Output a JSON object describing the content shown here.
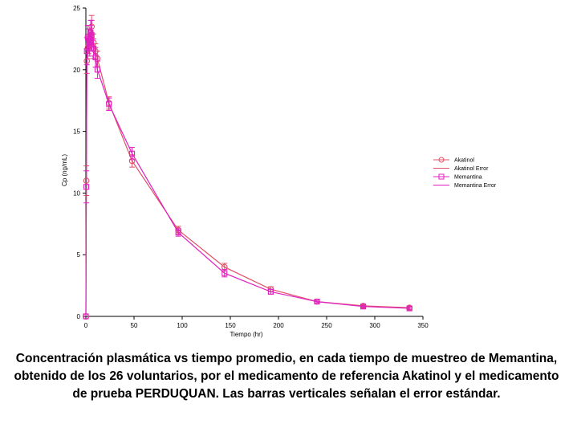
{
  "caption": "Concentración plasmática vs tiempo promedio, en cada tiempo de muestreo de Memantina, obtenido de los 26 voluntarios, por el medicamento de referencia Akatinol y el medicamento de prueba PERDUQUAN. Las barras verticales señalan el error estándar.",
  "chart_data": {
    "type": "line",
    "xlabel": "Tiempo (hr)",
    "ylabel": "Cp (ng/mL)",
    "xlim": [
      0,
      350
    ],
    "ylim": [
      0,
      25
    ],
    "xticks": [
      0,
      50,
      100,
      150,
      200,
      250,
      300,
      350
    ],
    "yticks": [
      0,
      5,
      10,
      15,
      20,
      25
    ],
    "grid": false,
    "legend_position": "right",
    "legend": [
      "Akatinol",
      "Akatinol Error",
      "Memantina",
      "Memantina Error"
    ],
    "series": [
      {
        "name": "Akatinol",
        "color": "#e0506a",
        "marker": "circle",
        "x": [
          0,
          0.5,
          1,
          2,
          3,
          4,
          5,
          6,
          8,
          10,
          12,
          24,
          48,
          96,
          144,
          192,
          240,
          288,
          336
        ],
        "y": [
          0,
          11,
          20.7,
          21.8,
          22.1,
          22.5,
          22.8,
          23.5,
          22.2,
          21.5,
          20.9,
          17.3,
          12.6,
          7.0,
          4.0,
          2.2,
          1.2,
          0.85,
          0.7
        ],
        "err": [
          0,
          1.2,
          1.0,
          0.9,
          0.8,
          0.8,
          0.8,
          0.9,
          0.7,
          0.6,
          0.6,
          0.5,
          0.5,
          0.3,
          0.3,
          0.2,
          0.1,
          0.1,
          0.1
        ]
      },
      {
        "name": "Memantina",
        "color": "#e020c0",
        "marker": "square",
        "x": [
          0,
          0.5,
          1,
          2,
          3,
          4,
          5,
          6,
          8,
          10,
          12,
          24,
          48,
          96,
          144,
          192,
          240,
          288,
          336
        ],
        "y": [
          0,
          10.5,
          21.5,
          22.6,
          22.4,
          22.0,
          23.0,
          22.8,
          21.7,
          21.0,
          20.0,
          17.2,
          13.2,
          6.8,
          3.5,
          2.0,
          1.2,
          0.8,
          0.65
        ],
        "err": [
          0,
          1.3,
          1.1,
          1.0,
          0.9,
          0.9,
          1.0,
          1.2,
          0.8,
          0.8,
          0.7,
          0.5,
          0.5,
          0.3,
          0.3,
          0.2,
          0.1,
          0.1,
          0.1
        ]
      }
    ]
  }
}
